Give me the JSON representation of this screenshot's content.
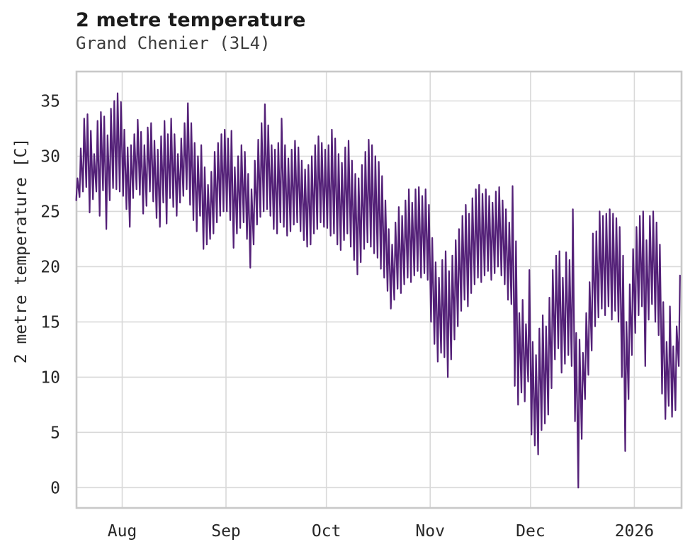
{
  "header": {
    "title": "2 metre temperature",
    "subtitle": "Grand Chenier (3L4)"
  },
  "colors": {
    "line": "#542178",
    "grid": "#d9d9d9",
    "frame": "#c9c9c9",
    "tick_text": "#262626",
    "title_text": "#1b1b1b",
    "subtitle_text": "#3c3c3c",
    "background": "#ffffff"
  },
  "chart_data": {
    "type": "line",
    "title": "2 metre temperature",
    "subtitle": "Grand Chenier (3L4)",
    "xlabel": "",
    "ylabel": "2 metre temperature [C]",
    "grid": true,
    "legend": "none",
    "ylim": [
      -1.84,
      37.66
    ],
    "yticks": [
      0,
      5,
      10,
      15,
      20,
      25,
      30,
      35
    ],
    "x_start_date": "Jul 18",
    "x_units": "days since start (2 samples/day: morning min, afternoon max)",
    "x_range_days": [
      0.35,
      181.1
    ],
    "xticks": [
      {
        "label": "Aug",
        "day": 14
      },
      {
        "label": "Sep",
        "day": 45
      },
      {
        "label": "Oct",
        "day": 75
      },
      {
        "label": "Nov",
        "day": 106
      },
      {
        "label": "Dec",
        "day": 136
      },
      {
        "label": "2026",
        "day": 167
      }
    ],
    "series": [
      {
        "name": "2 metre temperature [C]",
        "color": "#542178",
        "daily_min": [
          26.0,
          26.3,
          26.8,
          27.2,
          24.9,
          26.1,
          26.8,
          24.6,
          26.9,
          23.4,
          26.0,
          27.1,
          27.0,
          26.8,
          26.4,
          25.2,
          23.6,
          26.2,
          27.0,
          26.5,
          24.8,
          25.5,
          26.8,
          25.9,
          24.4,
          23.6,
          25.8,
          23.9,
          26.2,
          25.4,
          24.6,
          25.8,
          26.4,
          27.0,
          25.6,
          24.2,
          23.2,
          24.6,
          21.6,
          22.0,
          22.5,
          23.0,
          24.0,
          24.6,
          25.0,
          25.0,
          24.2,
          21.7,
          23.0,
          23.5,
          24.0,
          22.5,
          19.9,
          22.0,
          23.8,
          24.5,
          25.0,
          25.2,
          24.6,
          23.4,
          23.0,
          24.0,
          23.6,
          22.8,
          23.2,
          23.8,
          24.0,
          23.2,
          22.4,
          21.8,
          22.0,
          23.0,
          23.4,
          24.0,
          23.6,
          23.5,
          22.8,
          23.0,
          22.0,
          21.5,
          22.4,
          23.0,
          21.8,
          20.6,
          19.3,
          20.4,
          21.6,
          22.2,
          21.8,
          21.2,
          20.8,
          19.8,
          19.0,
          17.8,
          16.2,
          17.0,
          18.0,
          17.6,
          18.4,
          19.0,
          18.6,
          19.2,
          19.6,
          19.0,
          19.4,
          18.8,
          15.0,
          13.0,
          11.4,
          12.2,
          11.8,
          10.0,
          11.6,
          13.4,
          14.6,
          16.0,
          17.0,
          16.4,
          17.6,
          18.4,
          19.0,
          18.6,
          19.2,
          19.6,
          18.8,
          19.4,
          20.0,
          19.2,
          18.4,
          17.0,
          16.6,
          9.2,
          7.5,
          8.6,
          7.8,
          9.6,
          4.8,
          3.8,
          3.0,
          5.2,
          5.8,
          6.6,
          9.0,
          11.6,
          12.6,
          10.4,
          11.2,
          12.0,
          11.0,
          6.0,
          0.0,
          4.4,
          8.0,
          10.2,
          12.4,
          14.6,
          15.4,
          16.2,
          15.6,
          16.4,
          15.2,
          16.0,
          15.0,
          10.0,
          3.3,
          8.0,
          12.0,
          14.0,
          15.6,
          16.4,
          11.0,
          15.2,
          16.6,
          15.0,
          13.8,
          8.5,
          6.2,
          7.4,
          6.4,
          7.0,
          11.0
        ],
        "daily_max": [
          28.0,
          30.7,
          33.4,
          33.8,
          32.3,
          30.2,
          33.2,
          34.0,
          33.6,
          31.9,
          34.3,
          35.0,
          35.7,
          34.9,
          32.4,
          30.8,
          31.0,
          32.0,
          33.3,
          32.2,
          31.0,
          32.6,
          33.0,
          31.4,
          30.6,
          31.8,
          33.2,
          32.0,
          33.4,
          32.0,
          30.2,
          31.6,
          33.0,
          34.8,
          33.0,
          31.2,
          30.0,
          31.0,
          29.0,
          27.4,
          28.6,
          30.4,
          31.2,
          32.0,
          32.4,
          31.6,
          32.3,
          29.0,
          30.0,
          31.0,
          30.4,
          28.4,
          27.0,
          29.6,
          31.5,
          33.0,
          34.7,
          32.8,
          31.0,
          30.6,
          31.2,
          33.4,
          31.0,
          29.8,
          30.6,
          31.4,
          30.8,
          29.6,
          28.8,
          29.2,
          30.0,
          31.0,
          31.8,
          31.2,
          30.6,
          31.0,
          32.4,
          31.6,
          30.2,
          29.4,
          30.8,
          31.4,
          29.6,
          28.4,
          28.0,
          29.2,
          30.4,
          31.5,
          31.0,
          30.0,
          29.5,
          28.2,
          26.0,
          23.4,
          22.0,
          24.0,
          25.4,
          24.6,
          26.0,
          27.0,
          25.8,
          27.0,
          27.2,
          26.4,
          27.0,
          25.6,
          22.6,
          20.4,
          19.0,
          20.6,
          21.4,
          19.6,
          21.0,
          22.4,
          23.4,
          24.6,
          25.6,
          24.8,
          26.2,
          27.0,
          27.4,
          26.6,
          27.0,
          26.4,
          25.8,
          26.8,
          27.2,
          26.0,
          25.2,
          24.0,
          27.3,
          22.3,
          15.8,
          17.0,
          14.8,
          19.7,
          13.2,
          12.0,
          14.4,
          15.6,
          14.6,
          17.2,
          19.7,
          21.0,
          21.4,
          19.0,
          21.3,
          20.6,
          25.2,
          14.0,
          13.4,
          12.2,
          15.8,
          18.6,
          23.0,
          23.2,
          25.0,
          24.6,
          24.8,
          25.2,
          24.8,
          24.4,
          23.6,
          21.0,
          15.0,
          18.4,
          21.6,
          23.6,
          24.6,
          25.0,
          22.4,
          24.6,
          25.0,
          24.0,
          22.0,
          16.8,
          13.2,
          16.4,
          12.8,
          14.6,
          19.2
        ]
      }
    ]
  }
}
